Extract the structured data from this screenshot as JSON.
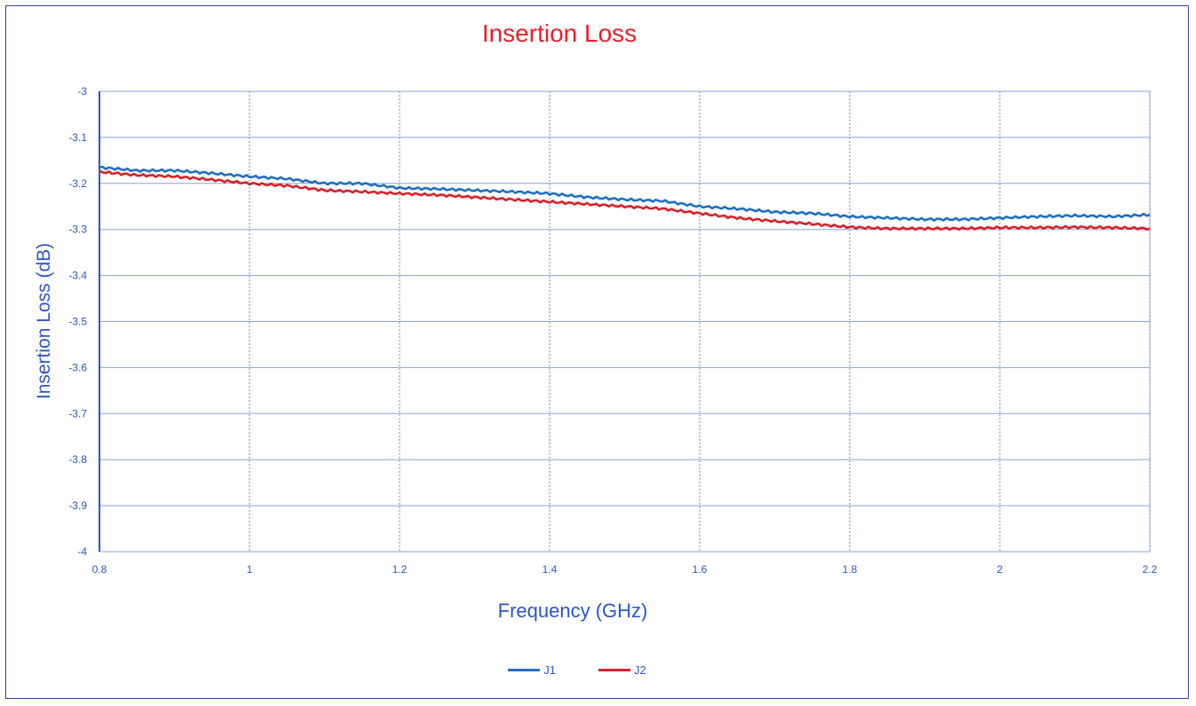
{
  "chart_data": {
    "type": "line",
    "title": "Insertion Loss",
    "xlabel": "Frequency (GHz)",
    "ylabel": "Insertion Loss (dB)",
    "xlim": [
      0.8,
      2.2
    ],
    "ylim": [
      -4,
      -3
    ],
    "x_ticks": [
      "0.8",
      "1",
      "1.2",
      "1.4",
      "1.6",
      "1.8",
      "2",
      "2.2"
    ],
    "y_ticks": [
      "-3",
      "-3.1",
      "-3.2",
      "-3.3",
      "-3.4",
      "-3.5",
      "-3.6",
      "-3.7",
      "-3.8",
      "-3.9",
      "-4"
    ],
    "grid": true,
    "legend_position": "bottom",
    "x": [
      0.8,
      0.85,
      0.9,
      0.95,
      1.0,
      1.05,
      1.1,
      1.15,
      1.2,
      1.25,
      1.3,
      1.35,
      1.4,
      1.45,
      1.5,
      1.55,
      1.6,
      1.65,
      1.7,
      1.75,
      1.8,
      1.85,
      1.9,
      1.95,
      2.0,
      2.05,
      2.1,
      2.15,
      2.2
    ],
    "series": [
      {
        "name": "J1",
        "color": "#1f6fc4",
        "values": [
          -3.165,
          -3.172,
          -3.172,
          -3.178,
          -3.185,
          -3.19,
          -3.2,
          -3.2,
          -3.21,
          -3.212,
          -3.215,
          -3.218,
          -3.222,
          -3.23,
          -3.235,
          -3.238,
          -3.25,
          -3.255,
          -3.262,
          -3.265,
          -3.272,
          -3.275,
          -3.278,
          -3.278,
          -3.275,
          -3.272,
          -3.27,
          -3.272,
          -3.268
        ]
      },
      {
        "name": "J2",
        "color": "#d8212a",
        "values": [
          -3.175,
          -3.182,
          -3.185,
          -3.192,
          -3.2,
          -3.205,
          -3.215,
          -3.218,
          -3.222,
          -3.225,
          -3.23,
          -3.235,
          -3.24,
          -3.245,
          -3.25,
          -3.255,
          -3.265,
          -3.275,
          -3.282,
          -3.288,
          -3.295,
          -3.298,
          -3.298,
          -3.298,
          -3.296,
          -3.296,
          -3.295,
          -3.296,
          -3.298
        ]
      }
    ]
  }
}
